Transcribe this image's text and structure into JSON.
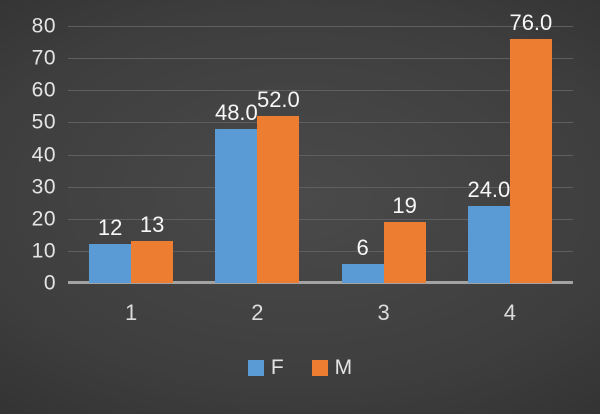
{
  "chart_data": {
    "type": "bar",
    "title": "",
    "xlabel": "",
    "ylabel": "",
    "categories": [
      "1",
      "2",
      "3",
      "4"
    ],
    "series": [
      {
        "name": "F",
        "color": "#5B9BD5",
        "values": [
          12,
          48,
          6,
          24
        ],
        "labels": [
          "12",
          "48.0",
          "6",
          "24.0"
        ]
      },
      {
        "name": "M",
        "color": "#ED7D31",
        "values": [
          13,
          52,
          19,
          76
        ],
        "labels": [
          "13",
          "52.0",
          "19",
          "76.0"
        ]
      }
    ],
    "ylim": [
      0,
      80
    ],
    "yticks": [
      0,
      10,
      20,
      30,
      40,
      50,
      60,
      70,
      80
    ],
    "grid": true,
    "legend_position": "bottom-center",
    "colors": {
      "background_center": "#4a4a4a",
      "background_edge": "#242424",
      "gridline": "#5f5f5f",
      "axis_line": "#a3a3a3",
      "tick_text": "#e4e4e4",
      "data_label_text": "#f7f7f7"
    }
  }
}
